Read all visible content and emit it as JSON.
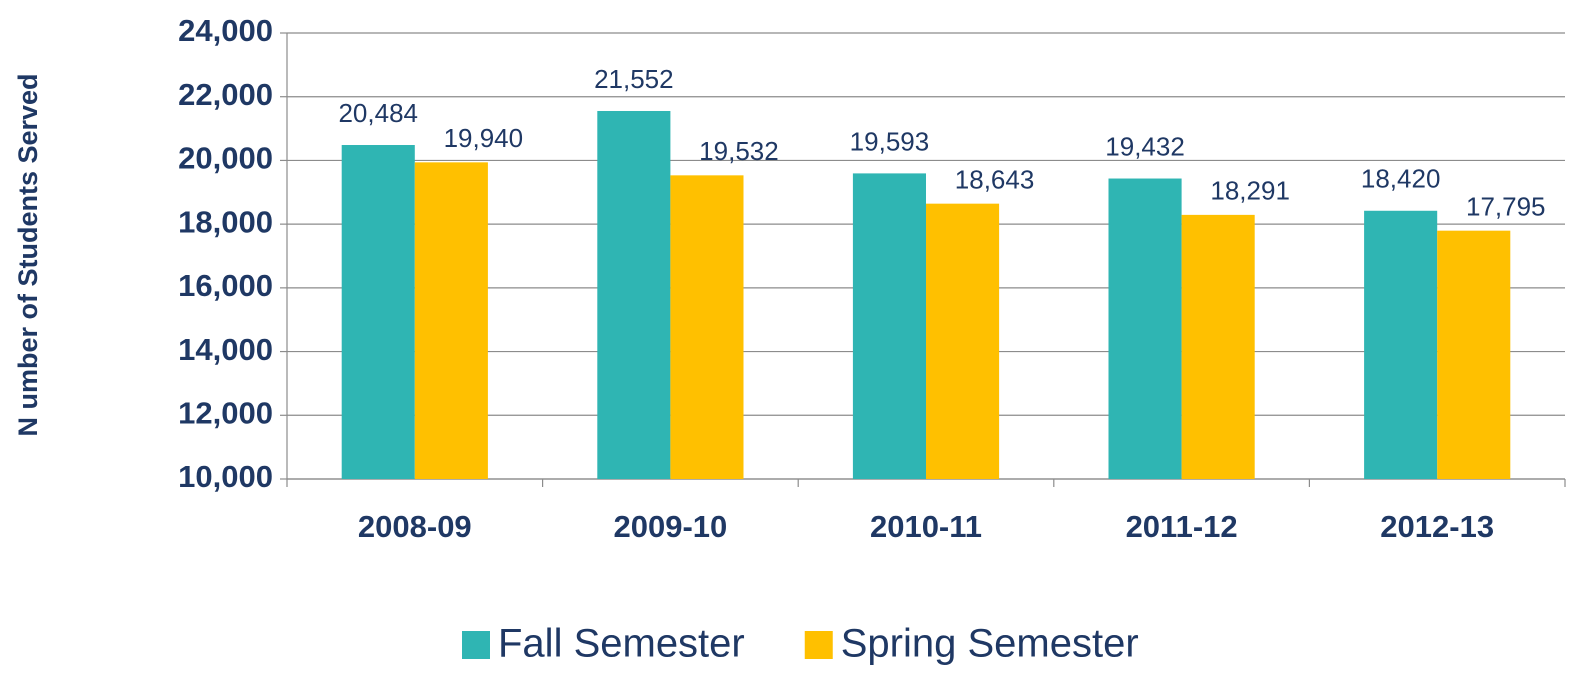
{
  "chart_data": {
    "type": "bar",
    "ylabel": "N umber of Students Served",
    "categories": [
      "2008-09",
      "2009-10",
      "2010-11",
      "2011-12",
      "2012-13"
    ],
    "series": [
      {
        "name": "Fall Semester",
        "color": "#2fb5b3",
        "values": [
          20484,
          21552,
          19593,
          19432,
          18420
        ],
        "value_labels": [
          "20,484",
          "21,552",
          "19,593",
          "19,432",
          "18,420"
        ]
      },
      {
        "name": "Spring Semester",
        "color": "#ffc000",
        "values": [
          19940,
          19532,
          18643,
          18291,
          17795
        ],
        "value_labels": [
          "19,940",
          "19,532",
          "18,643",
          "18,291",
          "17,795"
        ]
      }
    ],
    "ylim": [
      10000,
      24000
    ],
    "yticks": [
      {
        "value": 10000,
        "label": "10,000"
      },
      {
        "value": 12000,
        "label": "12,000"
      },
      {
        "value": 14000,
        "label": "14,000"
      },
      {
        "value": 16000,
        "label": "16,000"
      },
      {
        "value": 18000,
        "label": "18,000"
      },
      {
        "value": 20000,
        "label": "20,000"
      },
      {
        "value": 22000,
        "label": "22,000"
      },
      {
        "value": 24000,
        "label": "24,000"
      }
    ],
    "grid": true,
    "legend": "bottom"
  }
}
